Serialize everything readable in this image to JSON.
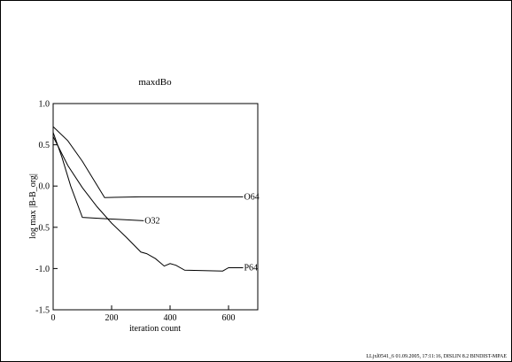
{
  "chart_data": {
    "type": "line",
    "title": "maxdBo",
    "x_label": "iteration count",
    "y_label": "log max |B-B_org|",
    "footer": "LLjxl0541_6     01.09.2005, 17:11:16, DISLIN 8.2 BINDIST-MPAE",
    "xlim": [
      0,
      700
    ],
    "xticks": [
      0,
      200,
      400,
      600
    ],
    "ylim": [
      -1.5,
      1.0
    ],
    "yticks": [
      {
        "value": 1.0,
        "label": "1.0"
      },
      0.5,
      {
        "value": 0,
        "label": "0.0"
      },
      -0.5,
      {
        "value": -1.0,
        "label": "-1.0"
      },
      -1.5
    ],
    "series": [
      {
        "name": "O64",
        "color": "#000000",
        "x": [
          0,
          50,
          100,
          176,
          300,
          650
        ],
        "values": [
          0.72,
          0.55,
          0.3,
          -0.14,
          -0.13,
          -0.13
        ]
      },
      {
        "name": "O32",
        "color": "#000000",
        "x": [
          0,
          30,
          60,
          100,
          200,
          310
        ],
        "values": [
          0.65,
          0.35,
          0.0,
          -0.38,
          -0.4,
          -0.42
        ]
      },
      {
        "name": "P64",
        "color": "#000000",
        "x": [
          0,
          50,
          100,
          150,
          200,
          250,
          300,
          320,
          350,
          380,
          400,
          420,
          450,
          580,
          600,
          650
        ],
        "values": [
          0.6,
          0.25,
          -0.02,
          -0.25,
          -0.45,
          -0.62,
          -0.8,
          -0.82,
          -0.88,
          -0.97,
          -0.94,
          -0.96,
          -1.02,
          -1.03,
          -0.99,
          -0.99
        ]
      }
    ]
  }
}
